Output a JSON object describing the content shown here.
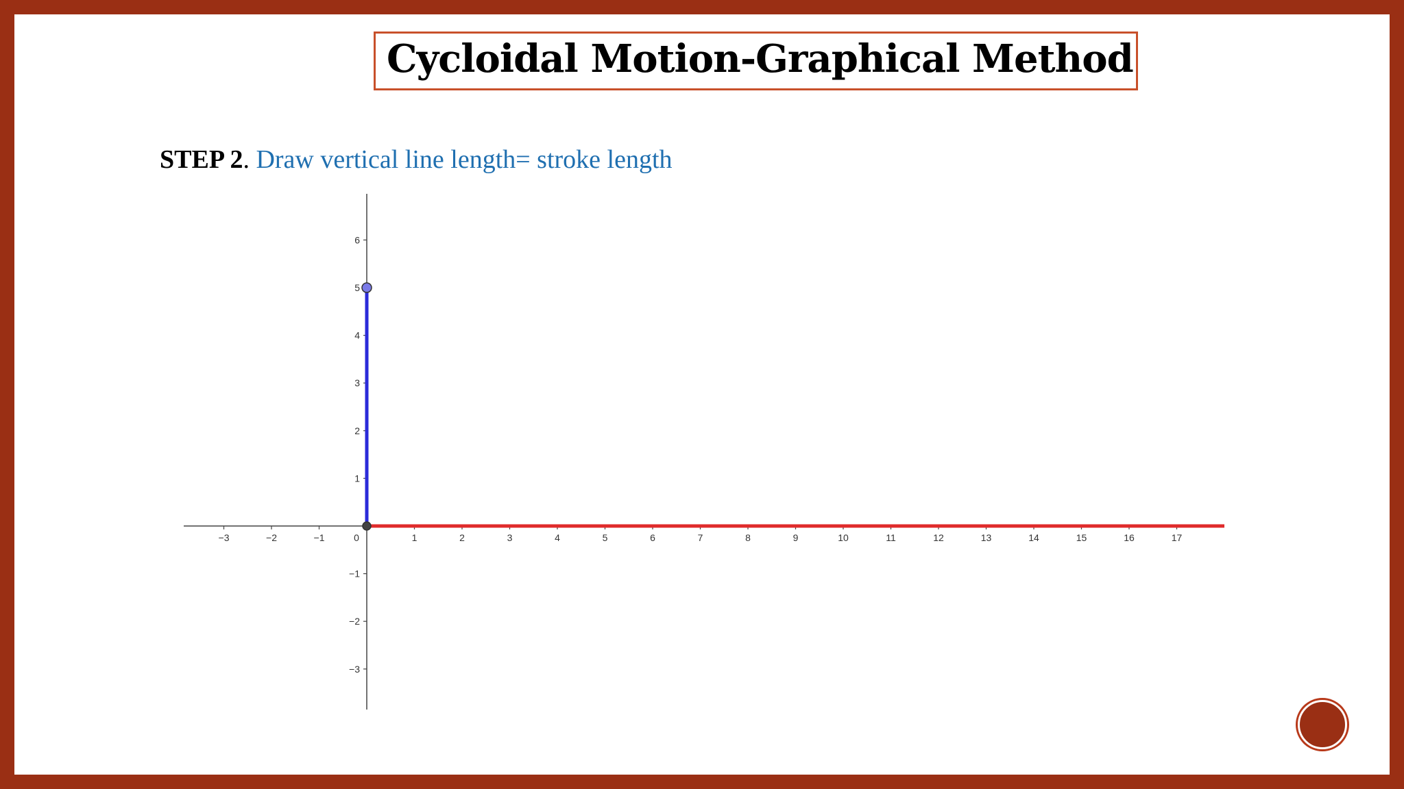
{
  "slide": {
    "title": "Cycloidal Motion-Graphical Method",
    "step_label": "STEP 2",
    "step_separator": ".",
    "step_text": " Draw vertical line length= stroke length"
  },
  "colors": {
    "frame": "#9a2f14",
    "title_border": "#c8502a",
    "step_text": "#1f6fb0",
    "vertical_segment": "#2b2bd9",
    "horizontal_segment": "#e02a2a",
    "point_fill": "#7a7ae8"
  },
  "chart_data": {
    "type": "line",
    "title": "",
    "xlabel": "",
    "ylabel": "",
    "xlim": [
      -3.9,
      18
    ],
    "ylim": [
      -3.9,
      7
    ],
    "grid": false,
    "x_ticks": [
      -3,
      -2,
      -1,
      1,
      2,
      3,
      4,
      5,
      6,
      7,
      8,
      9,
      10,
      11,
      12,
      13,
      14,
      15,
      16,
      17
    ],
    "y_ticks": [
      -3,
      -2,
      -1,
      1,
      2,
      3,
      4,
      5,
      6
    ],
    "origin_label": "0",
    "series": [
      {
        "name": "",
        "color": "#2b2bd9",
        "points": [
          [
            0,
            0
          ],
          [
            0,
            5
          ]
        ]
      },
      {
        "name": "",
        "color": "#e02a2a",
        "points": [
          [
            0,
            0
          ],
          [
            18,
            0
          ]
        ]
      }
    ],
    "points": [
      {
        "x": 0,
        "y": 5,
        "color": "#7a7ae8"
      },
      {
        "x": 0,
        "y": 0,
        "color": "#444444"
      }
    ]
  }
}
